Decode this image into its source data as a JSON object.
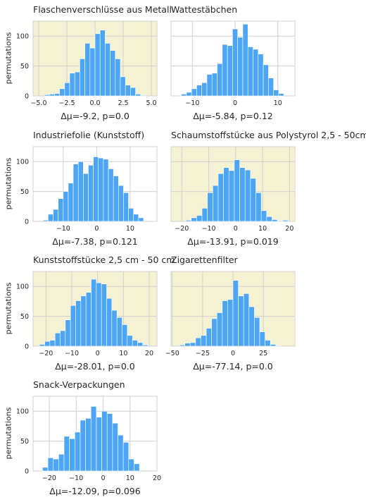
{
  "figure": {
    "colors": {
      "bar": "#4da6f5",
      "bar_edge": "#ffffff",
      "highlight_bg": "#f5f2d3",
      "plain_bg": "#ffffff",
      "grid": "#d0d0d0"
    }
  },
  "chart_data": [
    {
      "type": "bar",
      "title": "Flaschenverschlüsse aus Metall",
      "xlabel": "Δμ=-9.2, p=0.0",
      "ylabel": "permutations",
      "highlighted": true,
      "xlim": [
        -5.5,
        5.5
      ],
      "ylim": [
        0,
        125
      ],
      "xticks": [
        -5.0,
        -2.5,
        0.0,
        2.5,
        5.0
      ],
      "xtick_labels": [
        "−5.0",
        "−2.5",
        "0.0",
        "2.5",
        "5.0"
      ],
      "yticks": [
        0,
        50,
        100
      ],
      "bin_edges": [
        -4.5,
        -4.05,
        -3.6,
        -3.15,
        -2.7,
        -2.25,
        -1.8,
        -1.35,
        -0.9,
        -0.45,
        0.0,
        0.45,
        0.9,
        1.35,
        1.8,
        2.25,
        2.7,
        3.15,
        3.6,
        4.05,
        4.5
      ],
      "values": [
        2,
        3,
        4,
        12,
        22,
        38,
        40,
        62,
        88,
        80,
        104,
        110,
        88,
        76,
        62,
        32,
        18,
        14,
        3,
        1
      ]
    },
    {
      "type": "bar",
      "title": "Wattestäbchen",
      "xlabel": "Δμ=-5.84, p=0.12",
      "ylabel": "",
      "highlighted": false,
      "xlim": [
        -15,
        14
      ],
      "ylim": [
        0,
        125
      ],
      "xticks": [
        -10,
        0,
        10
      ],
      "xtick_labels": [
        "−10",
        "0",
        "10"
      ],
      "yticks": [
        0,
        50,
        100
      ],
      "bin_edges": [
        -12.6,
        -11.4,
        -10.2,
        -9.0,
        -7.8,
        -6.6,
        -5.4,
        -4.2,
        -3.0,
        -1.8,
        -0.6,
        0.6,
        1.8,
        3.0,
        4.2,
        5.4,
        6.6,
        7.8,
        9.0,
        10.2,
        11.4
      ],
      "values": [
        3,
        6,
        12,
        18,
        22,
        36,
        38,
        54,
        86,
        84,
        112,
        98,
        120,
        82,
        78,
        70,
        52,
        30,
        10,
        4
      ]
    },
    {
      "type": "bar",
      "title": "Industriefolie (Kunststoff)",
      "xlabel": "Δμ=-7.38, p=0.121",
      "ylabel": "permutations",
      "highlighted": false,
      "xlim": [
        -19,
        18
      ],
      "ylim": [
        0,
        125
      ],
      "xticks": [
        -10,
        0,
        10
      ],
      "xtick_labels": [
        "−10",
        "0",
        "10"
      ],
      "yticks": [
        0,
        50,
        100
      ],
      "bin_edges": [
        -16.0,
        -14.5,
        -13.0,
        -11.5,
        -10.0,
        -8.5,
        -7.0,
        -5.5,
        -4.0,
        -2.5,
        -1.0,
        0.5,
        2.0,
        3.5,
        5.0,
        6.5,
        8.0,
        9.5,
        11.0,
        12.5,
        14.0,
        15.5
      ],
      "values": [
        2,
        12,
        20,
        38,
        50,
        64,
        96,
        100,
        80,
        94,
        108,
        106,
        104,
        88,
        76,
        60,
        48,
        22,
        12,
        6,
        0
      ]
    },
    {
      "type": "bar",
      "title": "Schaumstoffstücke aus Polystyrol 2,5 - 50cm",
      "xlabel": "Δμ=-13.91, p=0.019",
      "ylabel": "",
      "highlighted": true,
      "xlim": [
        -24,
        22
      ],
      "ylim": [
        0,
        125
      ],
      "xticks": [
        -20,
        -10,
        0,
        10,
        20
      ],
      "xtick_labels": [
        "−20",
        "−10",
        "0",
        "10",
        "20"
      ],
      "yticks": [
        0,
        50,
        100
      ],
      "bin_edges": [
        -18.5,
        -16.5,
        -14.5,
        -12.5,
        -10.5,
        -8.5,
        -6.5,
        -4.5,
        -2.5,
        -0.5,
        1.5,
        3.5,
        5.5,
        7.5,
        9.5,
        11.5,
        13.5,
        15.5,
        17.5,
        19.5
      ],
      "values": [
        2,
        6,
        10,
        22,
        48,
        60,
        80,
        90,
        85,
        103,
        90,
        86,
        72,
        48,
        18,
        8,
        3,
        1,
        2
      ]
    },
    {
      "type": "bar",
      "title": "Kunststoffstücke 2,5 cm - 50 cm",
      "xlabel": "Δμ=-28.01, p=0.0",
      "ylabel": "permutations",
      "highlighted": true,
      "xlim": [
        -25,
        23
      ],
      "ylim": [
        0,
        125
      ],
      "xticks": [
        -20,
        -10,
        0,
        10,
        20
      ],
      "xtick_labels": [
        "−20",
        "−10",
        "0",
        "10",
        "20"
      ],
      "yticks": [
        0,
        50,
        100
      ],
      "bin_edges": [
        -22.5,
        -20.5,
        -18.5,
        -16.5,
        -14.5,
        -12.5,
        -10.5,
        -8.5,
        -6.5,
        -4.5,
        -2.5,
        -0.5,
        1.5,
        3.5,
        5.5,
        7.5,
        9.5,
        11.5,
        13.5,
        15.5,
        17.5,
        19.5
      ],
      "values": [
        3,
        8,
        10,
        22,
        26,
        44,
        68,
        76,
        84,
        90,
        112,
        106,
        104,
        80,
        60,
        48,
        36,
        18,
        10,
        6,
        2
      ]
    },
    {
      "type": "bar",
      "title": "Zigarettenfilter",
      "xlabel": "Δμ=-77.14, p=0.0",
      "ylabel": "",
      "highlighted": true,
      "xlim": [
        -51,
        51
      ],
      "ylim": [
        0,
        125
      ],
      "xticks": [
        -50,
        -25,
        0,
        25
      ],
      "xtick_labels": [
        "−50",
        "−25",
        "0",
        "25"
      ],
      "yticks": [
        0,
        50,
        100
      ],
      "bin_edges": [
        -44.0,
        -39.6,
        -35.2,
        -30.8,
        -26.4,
        -22.0,
        -17.6,
        -13.2,
        -8.8,
        -4.4,
        0.0,
        4.4,
        8.8,
        13.2,
        17.6,
        22.0,
        26.4,
        30.8,
        35.2,
        39.6
      ],
      "values": [
        2,
        5,
        6,
        14,
        18,
        30,
        46,
        56,
        76,
        78,
        110,
        84,
        88,
        66,
        48,
        24,
        10,
        3,
        1
      ]
    },
    {
      "type": "bar",
      "title": "Snack-Verpackungen",
      "xlabel": "Δμ=-12.09, p=0.096",
      "ylabel": "permutations",
      "highlighted": false,
      "xlim": [
        -26,
        20
      ],
      "ylim": [
        0,
        125
      ],
      "xticks": [
        -20,
        -10,
        0,
        10,
        20
      ],
      "xtick_labels": [
        "−20",
        "−10",
        "0",
        "10",
        "20"
      ],
      "yticks": [
        0,
        50,
        100
      ],
      "bin_edges": [
        -22.5,
        -20.5,
        -18.5,
        -16.5,
        -14.5,
        -12.5,
        -10.5,
        -8.5,
        -6.5,
        -4.5,
        -2.5,
        -0.5,
        1.5,
        3.5,
        5.5,
        7.5,
        9.5,
        11.5,
        13.5,
        15.5,
        17.5
      ],
      "values": [
        6,
        22,
        20,
        28,
        58,
        54,
        65,
        85,
        88,
        108,
        90,
        100,
        96,
        80,
        60,
        48,
        20,
        12,
        0,
        0
      ]
    }
  ]
}
